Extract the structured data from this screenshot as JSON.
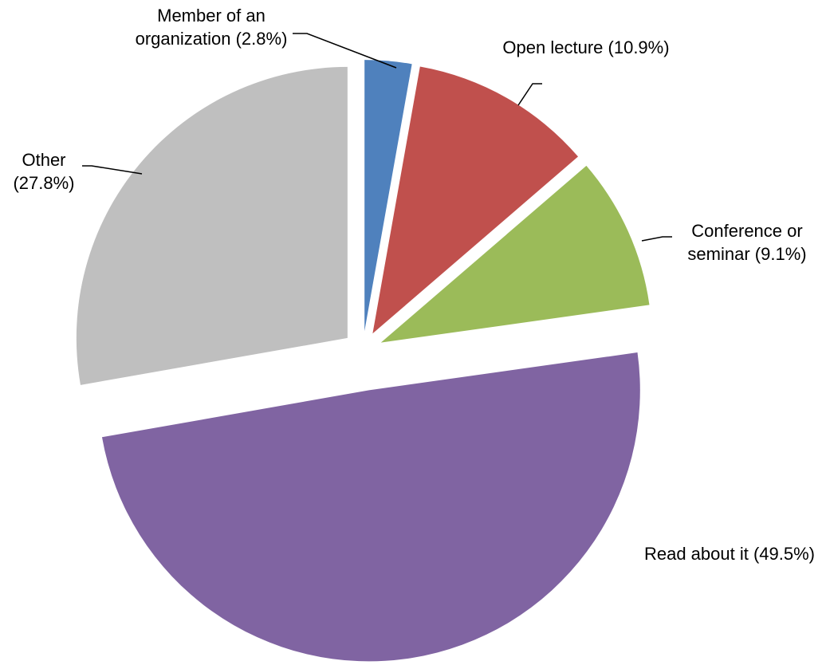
{
  "chart_data": {
    "type": "pie",
    "categories": [
      "Member of an organization",
      "Open lecture",
      "Conference or seminar",
      "Read about it",
      "Other"
    ],
    "values": [
      2.8,
      10.9,
      9.1,
      49.5,
      27.8
    ],
    "value_labels": [
      "(2.8%)",
      "(10.9%)",
      "(9.1%)",
      "(49.5%)",
      "(27.8%)"
    ],
    "colors": [
      "#4f81bd",
      "#c0504d",
      "#9bbb59",
      "#8064a2",
      "#bfbfbf"
    ]
  }
}
